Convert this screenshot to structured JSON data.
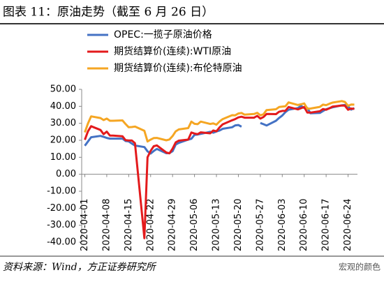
{
  "chart_data": {
    "type": "line",
    "title": "图表 11：原油走势（截至 6 月 26 日）",
    "source": "资料来源：Wind，方正证券研究所",
    "watermark": "宏观的颜色",
    "legend": "upper left",
    "x": [
      "2020-04-01",
      "2020-04-02",
      "2020-04-03",
      "2020-04-06",
      "2020-04-07",
      "2020-04-08",
      "2020-04-09",
      "2020-04-10",
      "2020-04-13",
      "2020-04-14",
      "2020-04-15",
      "2020-04-16",
      "2020-04-17",
      "2020-04-20",
      "2020-04-21",
      "2020-04-22",
      "2020-04-23",
      "2020-04-24",
      "2020-04-27",
      "2020-04-28",
      "2020-04-29",
      "2020-04-30",
      "2020-05-01",
      "2020-05-04",
      "2020-05-05",
      "2020-05-06",
      "2020-05-07",
      "2020-05-08",
      "2020-05-11",
      "2020-05-12",
      "2020-05-13",
      "2020-05-14",
      "2020-05-15",
      "2020-05-18",
      "2020-05-19",
      "2020-05-20",
      "2020-05-21",
      "2020-05-22",
      "2020-05-25",
      "2020-05-26",
      "2020-05-27",
      "2020-05-28",
      "2020-05-29",
      "2020-06-01",
      "2020-06-02",
      "2020-06-03",
      "2020-06-04",
      "2020-06-05",
      "2020-06-08",
      "2020-06-09",
      "2020-06-10",
      "2020-06-11",
      "2020-06-12",
      "2020-06-15",
      "2020-06-16",
      "2020-06-17",
      "2020-06-18",
      "2020-06-19",
      "2020-06-22",
      "2020-06-23",
      "2020-06-24",
      "2020-06-25",
      "2020-06-26"
    ],
    "series": [
      {
        "name": "OPEC:一揽子原油价格",
        "color": "#4472c4",
        "values": [
          16.8,
          19.3,
          21.8,
          22.6,
          22.0,
          21.4,
          21.0,
          21.0,
          21.0,
          19.6,
          19.4,
          18.1,
          16.9,
          16.0,
          13.5,
          12.2,
          13.7,
          14.9,
          12.4,
          12.5,
          13.6,
          17.5,
          18.5,
          20.4,
          20.9,
          23.2,
          23.4,
          23.8,
          25.0,
          24.5,
          25.2,
          25.8,
          26.8,
          27.7,
          28.8,
          29.0,
          28.0,
          null,
          null,
          null,
          30.2,
          29.5,
          28.7,
          31.5,
          33.2,
          34.6,
          36.6,
          38.0,
          39.0,
          40.3,
          39.0,
          39.0,
          35.9,
          36.1,
          37.2,
          38.3,
          38.9,
          39.4,
          40.6,
          40.8,
          39.9,
          38.1,
          39.0
        ]
      },
      {
        "name": "期货结算价(连续):WTI原油",
        "color": "#e31a1c",
        "values": [
          20.3,
          25.3,
          28.3,
          26.1,
          23.6,
          25.1,
          22.8,
          22.8,
          22.4,
          20.1,
          19.9,
          19.9,
          18.3,
          -37.6,
          10.0,
          13.8,
          16.5,
          17.0,
          12.8,
          12.3,
          15.1,
          18.8,
          19.8,
          20.4,
          24.6,
          24.0,
          23.6,
          24.7,
          24.1,
          25.8,
          25.3,
          27.6,
          29.4,
          31.8,
          32.5,
          33.5,
          33.9,
          33.3,
          33.3,
          34.4,
          32.8,
          33.7,
          35.5,
          35.4,
          36.8,
          37.3,
          37.4,
          39.6,
          38.2,
          38.9,
          39.6,
          36.3,
          36.3,
          37.1,
          38.4,
          38.0,
          38.8,
          39.8,
          40.5,
          40.4,
          38.0,
          38.7,
          38.5
        ]
      },
      {
        "name": "期货结算价(连续):布伦特原油",
        "color": "#f5a623",
        "values": [
          24.7,
          29.9,
          34.1,
          33.1,
          31.9,
          32.8,
          31.5,
          31.5,
          31.7,
          29.6,
          27.7,
          27.8,
          28.1,
          25.6,
          19.3,
          20.4,
          21.3,
          21.4,
          20.0,
          20.5,
          22.5,
          25.3,
          26.4,
          27.2,
          31.0,
          29.7,
          29.5,
          31.0,
          29.6,
          30.0,
          29.2,
          31.1,
          32.5,
          34.8,
          34.7,
          35.8,
          36.1,
          35.1,
          35.5,
          36.2,
          34.7,
          35.3,
          37.8,
          38.3,
          39.6,
          39.8,
          40.0,
          42.3,
          40.8,
          41.2,
          41.7,
          38.6,
          38.7,
          39.7,
          41.0,
          40.7,
          41.5,
          42.2,
          43.1,
          42.6,
          40.3,
          41.1,
          41.0
        ]
      }
    ],
    "xlim": [
      "2020-03-31",
      "2020-06-27"
    ],
    "xticks": [
      "2020-04-01",
      "2020-04-08",
      "2020-04-15",
      "2020-04-22",
      "2020-04-29",
      "2020-05-06",
      "2020-05-13",
      "2020-05-20",
      "2020-05-27",
      "2020-06-03",
      "2020-06-10",
      "2020-06-17",
      "2020-06-24"
    ],
    "ylim": [
      -40,
      50
    ],
    "yticks": [
      {
        "value": -40,
        "label": "-40.00"
      },
      {
        "value": -30,
        "label": "-30.00"
      },
      {
        "value": -20,
        "label": "-20.00"
      },
      {
        "value": -10,
        "label": "-10.00"
      },
      {
        "value": 0,
        "label": "0.00"
      },
      {
        "value": 10,
        "label": "10.00"
      },
      {
        "value": 20,
        "label": "20.00"
      },
      {
        "value": 30,
        "label": "30.00"
      },
      {
        "value": 40,
        "label": "40.00"
      },
      {
        "value": 50,
        "label": "50.00"
      }
    ]
  }
}
